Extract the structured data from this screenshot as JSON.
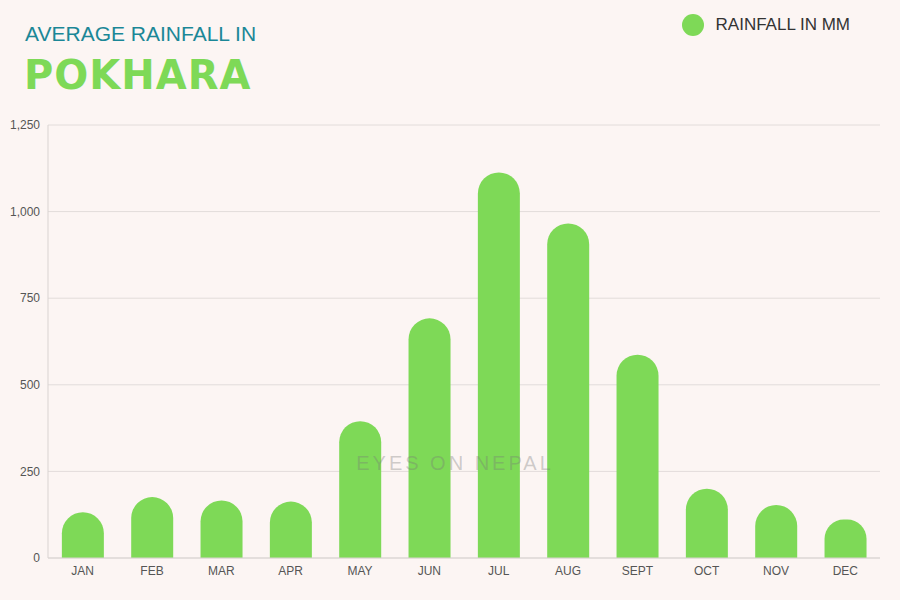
{
  "chart_data": {
    "type": "bar",
    "title": "POKHARA",
    "subtitle": "AVERAGE RAINFALL IN",
    "annotation": "EYES ON NEPAL",
    "categories": [
      "JAN",
      "FEB",
      "MAR",
      "APR",
      "MAY",
      "JUN",
      "JUL",
      "AUG",
      "SEPT",
      "OCT",
      "NOV",
      "DEC"
    ],
    "series": [
      {
        "name": "RAINFALL IN MM",
        "color": "#7ed957",
        "values": [
          132,
          176,
          166,
          163,
          395,
          692,
          1113,
          966,
          587,
          200,
          153,
          111
        ]
      }
    ],
    "ylim": [
      0,
      1250
    ],
    "yticks": [
      0,
      250,
      500,
      750,
      {
        "value": 1000,
        "label": "1,000"
      },
      {
        "value": 1250,
        "label": "1,250"
      }
    ],
    "grid": true,
    "legend": "top-right"
  }
}
